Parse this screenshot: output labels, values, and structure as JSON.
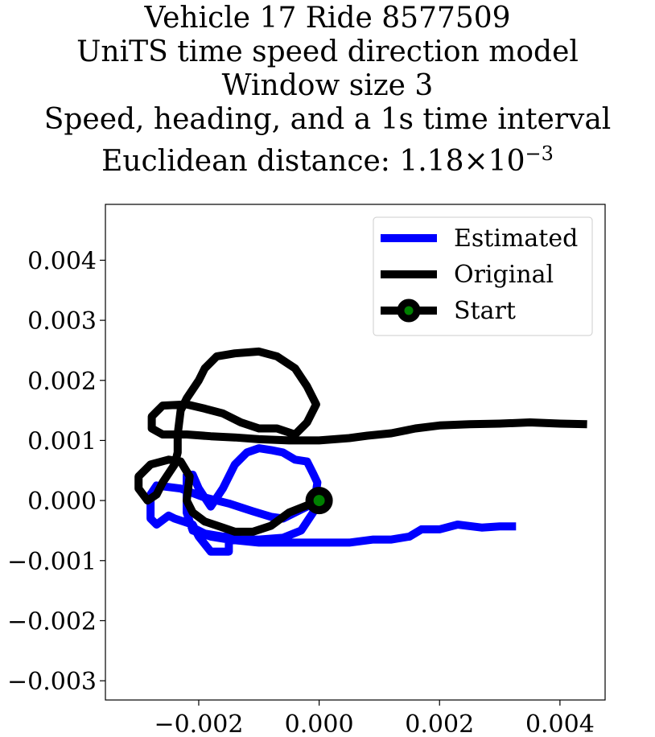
{
  "chart_data": {
    "type": "line",
    "title_lines": [
      "Vehicle 17 Ride 8577509",
      "UniTS time speed direction model",
      "Window size 3",
      "Speed, heading, and a 1s time interval"
    ],
    "metric_label": "Euclidean distance: ",
    "metric_mantissa": "1.18",
    "metric_times": "×10",
    "metric_exponent": "−3",
    "xlabel": "",
    "ylabel": "",
    "xlim": [
      -0.00355,
      0.00475
    ],
    "ylim": [
      -0.00332,
      0.00493
    ],
    "grid": false,
    "legend_placement": "top-right",
    "x_ticks": [
      -0.002,
      0.0,
      0.002,
      0.004
    ],
    "x_tick_labels": [
      "−0.002",
      "0.000",
      "0.002",
      "0.004"
    ],
    "y_ticks": [
      0.004,
      0.003,
      0.002,
      0.001,
      0.0,
      -0.001,
      -0.002,
      -0.003
    ],
    "y_tick_labels": [
      "0.004",
      "0.003",
      "0.002",
      "0.001",
      "0.000",
      "−0.001",
      "−0.002",
      "−0.003"
    ],
    "series": [
      {
        "name": "Estimated",
        "color": "#0000ff",
        "points": [
          [
            0.0,
            0.0
          ],
          [
            -0.0002,
            -0.0001
          ],
          [
            -0.0004,
            -0.0002
          ],
          [
            -0.0006,
            -0.0003
          ],
          [
            -0.0008,
            -0.00027
          ],
          [
            -0.0011,
            -0.00018
          ],
          [
            -0.0015,
            -5e-05
          ],
          [
            -0.0019,
            5e-05
          ],
          [
            -0.0023,
            0.0002
          ],
          [
            -0.0027,
            0.00025
          ],
          [
            -0.0028,
            0.0001
          ],
          [
            -0.0028,
            -0.0003
          ],
          [
            -0.0027,
            -0.0004
          ],
          [
            -0.0025,
            -0.00025
          ],
          [
            -0.0024,
            -0.0003
          ],
          [
            -0.0021,
            -0.0004
          ],
          [
            -0.002,
            -0.0006
          ],
          [
            -0.0018,
            -0.00085
          ],
          [
            -0.0015,
            -0.00085
          ],
          [
            -0.0015,
            -0.0007
          ],
          [
            -0.0015,
            -0.0006
          ],
          [
            -0.0018,
            -0.0006
          ],
          [
            -0.0021,
            -0.0005
          ],
          [
            -0.0022,
            -0.0002
          ],
          [
            -0.0022,
            0.00042
          ],
          [
            -0.0021,
            0.00043
          ],
          [
            -0.002,
            0.0002
          ],
          [
            -0.0018,
            -0.0001
          ],
          [
            -0.0016,
            0.0002
          ],
          [
            -0.0014,
            0.0006
          ],
          [
            -0.0012,
            0.0008
          ],
          [
            -0.001,
            0.00087
          ],
          [
            -0.0008,
            0.00084
          ],
          [
            -0.0006,
            0.0008
          ],
          [
            -0.0004,
            0.00068
          ],
          [
            -0.0002,
            0.00065
          ],
          [
            -0.0001,
            0.00045
          ],
          [
            -3e-05,
            0.0003
          ],
          [
            -0.0001,
            -0.0002
          ],
          [
            -0.0003,
            -0.0005
          ],
          [
            -0.0006,
            -0.00062
          ],
          [
            -0.001,
            -0.00065
          ],
          [
            -0.0013,
            -0.00065
          ],
          [
            -0.0016,
            -0.0006
          ],
          [
            -0.0019,
            -0.00055
          ],
          [
            -0.0021,
            -0.00045
          ],
          [
            -0.0018,
            -0.0006
          ],
          [
            -0.0015,
            -0.00065
          ],
          [
            -0.001,
            -0.0007
          ],
          [
            -0.0005,
            -0.0007
          ],
          [
            0.0,
            -0.0007
          ],
          [
            0.0005,
            -0.0007
          ],
          [
            0.0009,
            -0.00065
          ],
          [
            0.0012,
            -0.00065
          ],
          [
            0.0015,
            -0.0006
          ],
          [
            0.0017,
            -0.00048
          ],
          [
            0.002,
            -0.00048
          ],
          [
            0.0023,
            -0.0004
          ],
          [
            0.0027,
            -0.00045
          ],
          [
            0.003,
            -0.00043
          ],
          [
            0.00327,
            -0.00043
          ]
        ]
      },
      {
        "name": "Original",
        "color": "#000000",
        "points": [
          [
            0.0,
            0.0
          ],
          [
            -0.0002,
            -8e-05
          ],
          [
            -0.0005,
            -0.0002
          ],
          [
            -0.0008,
            -0.00042
          ],
          [
            -0.0011,
            -0.00052
          ],
          [
            -0.0014,
            -0.00052
          ],
          [
            -0.0016,
            -0.00045
          ],
          [
            -0.0019,
            -0.00035
          ],
          [
            -0.0021,
            -0.0002
          ],
          [
            -0.0022,
            0.0
          ],
          [
            -0.00215,
            0.0004
          ],
          [
            -0.0023,
            0.00065
          ],
          [
            -0.0025,
            0.00068
          ],
          [
            -0.0028,
            0.0006
          ],
          [
            -0.003,
            0.0004
          ],
          [
            -0.003,
            0.0002
          ],
          [
            -0.00285,
            0.0
          ],
          [
            -0.0027,
            0.0001
          ],
          [
            -0.0026,
            0.0003
          ],
          [
            -0.0024,
            0.0006
          ],
          [
            -0.00235,
            0.0008
          ],
          [
            -0.00235,
            0.0011
          ],
          [
            -0.0023,
            0.0015
          ],
          [
            -0.0022,
            0.0017
          ],
          [
            -0.002,
            0.002
          ],
          [
            -0.0019,
            0.0022
          ],
          [
            -0.0017,
            0.0024
          ],
          [
            -0.0014,
            0.00245
          ],
          [
            -0.001,
            0.00248
          ],
          [
            -0.0007,
            0.0024
          ],
          [
            -0.0004,
            0.0022
          ],
          [
            -0.0002,
            0.0019
          ],
          [
            -5e-05,
            0.0016
          ],
          [
            -0.0002,
            0.0013
          ],
          [
            -0.0004,
            0.0011
          ],
          [
            -0.0007,
            0.0012
          ],
          [
            -0.001,
            0.0012
          ],
          [
            -0.0013,
            0.0013
          ],
          [
            -0.0016,
            0.00145
          ],
          [
            -0.0019,
            0.00153
          ],
          [
            -0.0022,
            0.0016
          ],
          [
            -0.0026,
            0.00158
          ],
          [
            -0.00278,
            0.0014
          ],
          [
            -0.00278,
            0.0012
          ],
          [
            -0.0026,
            0.0011
          ],
          [
            -0.0022,
            0.0011
          ],
          [
            -0.0018,
            0.00107
          ],
          [
            -0.0014,
            0.00105
          ],
          [
            -0.001,
            0.00102
          ],
          [
            -0.0005,
            0.001
          ],
          [
            0.0,
            0.001
          ],
          [
            0.0005,
            0.00104
          ],
          [
            0.0008,
            0.00108
          ],
          [
            0.0012,
            0.00112
          ],
          [
            0.0016,
            0.0012
          ],
          [
            0.002,
            0.00125
          ],
          [
            0.0025,
            0.00127
          ],
          [
            0.003,
            0.00128
          ],
          [
            0.0035,
            0.0013
          ],
          [
            0.004,
            0.00128
          ],
          [
            0.00445,
            0.00127
          ]
        ]
      }
    ],
    "start_marker": {
      "name": "Start",
      "x": 0.0,
      "y": 0.0,
      "face_color": "#008000",
      "edge_color": "#000000"
    }
  }
}
